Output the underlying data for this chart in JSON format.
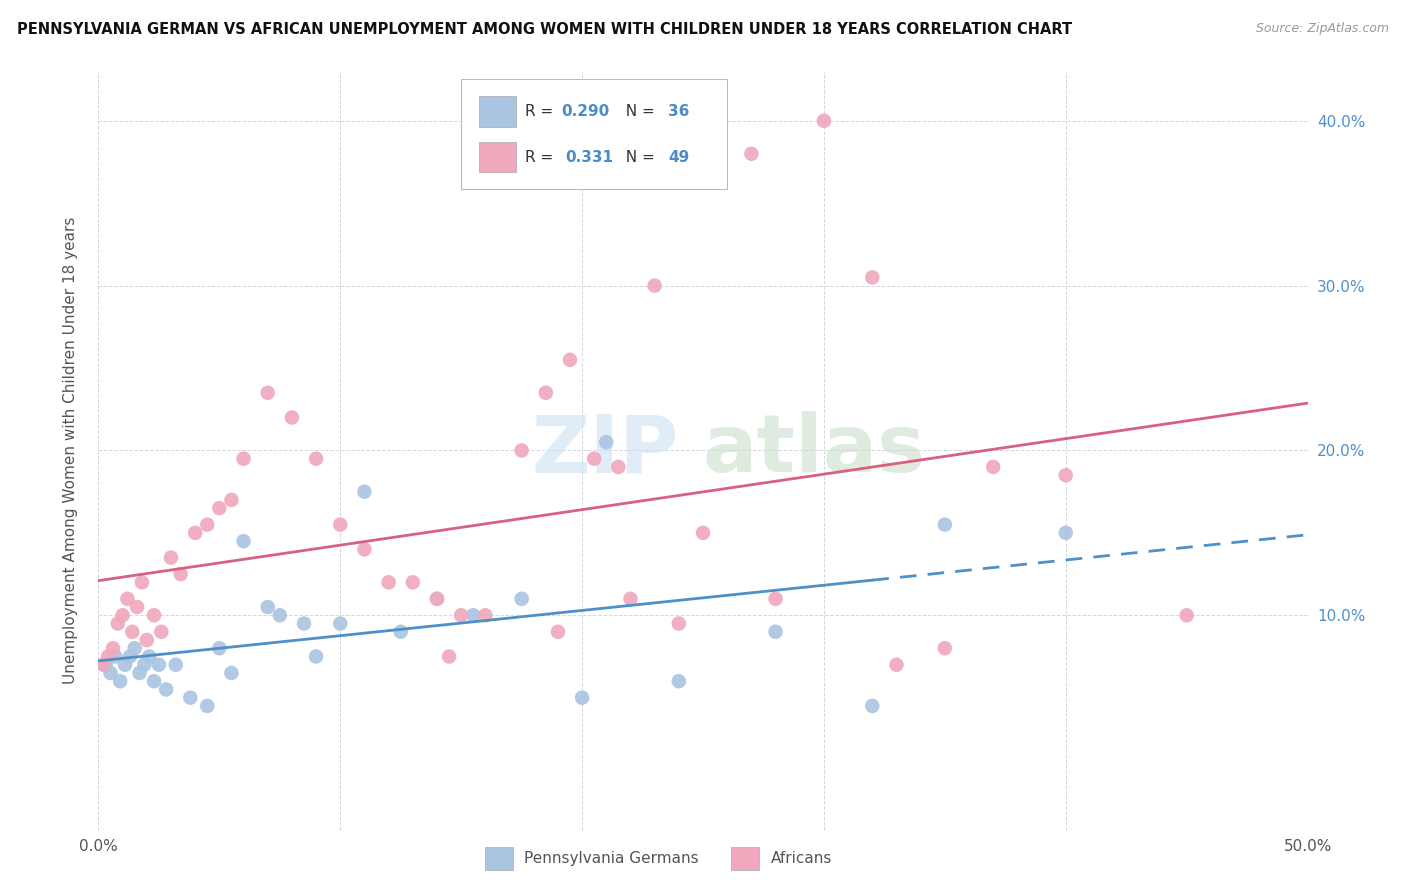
{
  "title": "PENNSYLVANIA GERMAN VS AFRICAN UNEMPLOYMENT AMONG WOMEN WITH CHILDREN UNDER 18 YEARS CORRELATION CHART",
  "source": "Source: ZipAtlas.com",
  "ylabel": "Unemployment Among Women with Children Under 18 years",
  "legend_labels": [
    "Pennsylvania Germans",
    "Africans"
  ],
  "blue_R": "0.290",
  "blue_N": "36",
  "pink_R": "0.331",
  "pink_N": "49",
  "blue_color": "#aac4e2",
  "pink_color": "#f0a8bc",
  "blue_line_color": "#5090c8",
  "pink_line_color": "#d86080",
  "xlim": [
    0,
    50
  ],
  "ylim": [
    -3,
    43
  ],
  "ytick_vals": [
    10,
    20,
    30,
    40
  ],
  "ytick_labels": [
    "10.0%",
    "20.0%",
    "30.0%",
    "40.0%"
  ],
  "xtick_vals": [
    0,
    10,
    20,
    30,
    40,
    50
  ],
  "blue_scatter_x": [
    0.3,
    0.5,
    0.7,
    0.9,
    1.1,
    1.3,
    1.5,
    1.7,
    1.9,
    2.1,
    2.3,
    2.5,
    2.8,
    3.2,
    3.8,
    4.5,
    5.0,
    5.5,
    6.0,
    7.0,
    7.5,
    8.5,
    9.0,
    10.0,
    11.0,
    12.5,
    14.0,
    15.5,
    17.5,
    20.0,
    21.0,
    24.0,
    28.0,
    32.0,
    35.0,
    40.0
  ],
  "blue_scatter_y": [
    7.0,
    6.5,
    7.5,
    6.0,
    7.0,
    7.5,
    8.0,
    6.5,
    7.0,
    7.5,
    6.0,
    7.0,
    5.5,
    7.0,
    5.0,
    4.5,
    8.0,
    6.5,
    14.5,
    10.5,
    10.0,
    9.5,
    7.5,
    9.5,
    17.5,
    9.0,
    11.0,
    10.0,
    11.0,
    5.0,
    20.5,
    6.0,
    9.0,
    4.5,
    15.5,
    15.0
  ],
  "pink_scatter_x": [
    0.2,
    0.4,
    0.6,
    0.8,
    1.0,
    1.2,
    1.4,
    1.6,
    1.8,
    2.0,
    2.3,
    2.6,
    3.0,
    3.4,
    4.0,
    4.5,
    5.0,
    5.5,
    6.0,
    7.0,
    8.0,
    9.0,
    10.0,
    11.0,
    12.0,
    13.0,
    14.0,
    15.0,
    16.0,
    17.5,
    18.5,
    19.5,
    20.5,
    21.5,
    23.0,
    25.0,
    27.0,
    30.0,
    32.0,
    35.0,
    37.0,
    40.0,
    45.0,
    22.0,
    24.0,
    14.5,
    19.0,
    28.0,
    33.0
  ],
  "pink_scatter_y": [
    7.0,
    7.5,
    8.0,
    9.5,
    10.0,
    11.0,
    9.0,
    10.5,
    12.0,
    8.5,
    10.0,
    9.0,
    13.5,
    12.5,
    15.0,
    15.5,
    16.5,
    17.0,
    19.5,
    23.5,
    22.0,
    19.5,
    15.5,
    14.0,
    12.0,
    12.0,
    11.0,
    10.0,
    10.0,
    20.0,
    23.5,
    25.5,
    19.5,
    19.0,
    30.0,
    15.0,
    38.0,
    40.0,
    30.5,
    8.0,
    19.0,
    18.5,
    10.0,
    11.0,
    9.5,
    7.5,
    9.0,
    11.0,
    7.0
  ],
  "blue_solid_end": 32,
  "title_fontsize": 10.5,
  "source_fontsize": 9,
  "axis_label_fontsize": 11,
  "tick_fontsize": 11,
  "legend_fontsize": 11
}
